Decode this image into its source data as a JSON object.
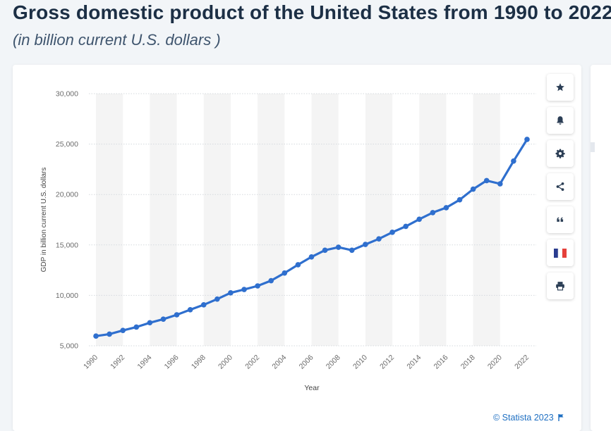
{
  "page": {
    "title": "Gross domestic product of the United States from 1990 to 2022",
    "subtitle": "(in billion current U.S. dollars )"
  },
  "toolbar": [
    {
      "icon": "star-icon",
      "label": "favorite"
    },
    {
      "icon": "bell-icon",
      "label": "notification"
    },
    {
      "icon": "gear-icon",
      "label": "settings"
    },
    {
      "icon": "share-icon",
      "label": "share"
    },
    {
      "icon": "quote-icon",
      "label": "citation"
    },
    {
      "icon": "french-flag-icon",
      "label": "language"
    },
    {
      "icon": "print-icon",
      "label": "print"
    }
  ],
  "credit": {
    "text": "© Statista 2023",
    "icon": "flag-icon"
  },
  "colors": {
    "line": "#2f6fce",
    "band": "#f4f4f4",
    "grid": "#d5d9de",
    "axis_text": "#6b6b6b",
    "flag_blue": "#2a3c8f",
    "flag_red": "#e5403a"
  },
  "chart_data": {
    "type": "line",
    "title": "",
    "xlabel": "Year",
    "ylabel": "GDP in billion current U.S. dollars",
    "x": [
      1990,
      1991,
      1992,
      1993,
      1994,
      1995,
      1996,
      1997,
      1998,
      1999,
      2000,
      2001,
      2002,
      2003,
      2004,
      2005,
      2006,
      2007,
      2008,
      2009,
      2010,
      2011,
      2012,
      2013,
      2014,
      2015,
      2016,
      2017,
      2018,
      2019,
      2020,
      2021,
      2022
    ],
    "x_tick_labels": [
      "1990",
      "1992",
      "1994",
      "1996",
      "1998",
      "2000",
      "2002",
      "2004",
      "2006",
      "2008",
      "2010",
      "2012",
      "2014",
      "2016",
      "2018",
      "2020",
      "2022"
    ],
    "y_ticks": [
      5000,
      10000,
      15000,
      20000,
      25000,
      30000
    ],
    "y_tick_labels": [
      "5,000",
      "10,000",
      "15,000",
      "20,000",
      "25,000",
      "30,000"
    ],
    "ylim": [
      5000,
      30000
    ],
    "grid": true,
    "legend": "none",
    "series": [
      {
        "values": [
          5963,
          6158,
          6520,
          6859,
          7287,
          7640,
          8073,
          8578,
          9063,
          9631,
          10251,
          10582,
          10936,
          11458,
          12214,
          13037,
          13815,
          14475,
          14770,
          14478,
          15049,
          15600,
          16254,
          16843,
          17551,
          18206,
          18695,
          19477,
          20533,
          21381,
          21061,
          23315,
          25464
        ]
      }
    ]
  }
}
